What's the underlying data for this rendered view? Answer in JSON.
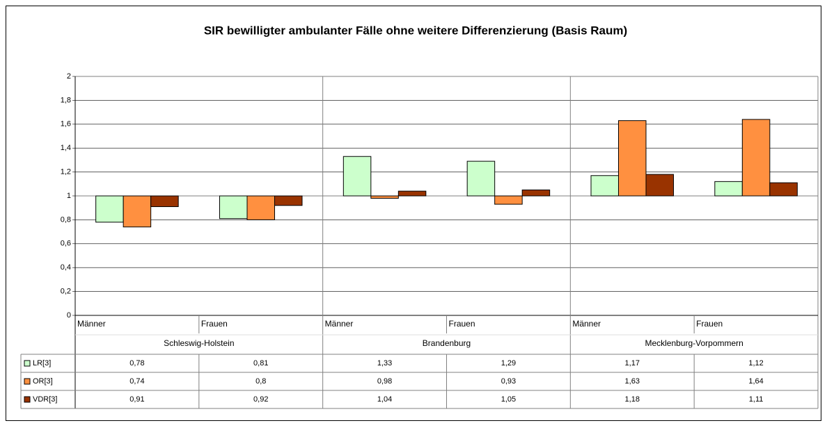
{
  "chart_data": {
    "type": "bar",
    "title": "SIR bewilligter ambulanter Fälle ohne weitere Differenzierung (Basis Raum)",
    "groups": [
      "Schleswig-Holstein",
      "Brandenburg",
      "Mecklenburg-Vorpommern"
    ],
    "categories": [
      "Männer",
      "Frauen",
      "Männer",
      "Frauen",
      "Männer",
      "Frauen"
    ],
    "baseline": 1,
    "series": [
      {
        "name": "LR[3]",
        "color": "#ccffcc",
        "values": [
          0.78,
          0.81,
          1.33,
          1.29,
          1.17,
          1.12
        ],
        "value_labels": [
          "0,78",
          "0,81",
          "1,33",
          "1,29",
          "1,17",
          "1,12"
        ]
      },
      {
        "name": "OR[3]",
        "color": "#ff9040",
        "values": [
          0.74,
          0.8,
          0.98,
          0.93,
          1.63,
          1.64
        ],
        "value_labels": [
          "0,74",
          "0,8",
          "0,98",
          "0,93",
          "1,63",
          "1,64"
        ]
      },
      {
        "name": "VDR[3]",
        "color": "#993300",
        "values": [
          0.91,
          0.92,
          1.04,
          1.05,
          1.18,
          1.11
        ],
        "value_labels": [
          "0,91",
          "0,92",
          "1,04",
          "1,05",
          "1,18",
          "1,11"
        ]
      }
    ],
    "ylim": [
      0,
      2
    ],
    "yticks": [
      0,
      {
        "value": 0.2,
        "label": "0,2"
      },
      {
        "value": 0.4,
        "label": "0,4"
      },
      {
        "value": 0.6,
        "label": "0,6"
      },
      {
        "value": 0.8,
        "label": "0,8"
      },
      1,
      {
        "value": 1.2,
        "label": "1,2"
      },
      {
        "value": 1.4,
        "label": "1,4"
      },
      {
        "value": 1.6,
        "label": "1,6"
      },
      {
        "value": 1.8,
        "label": "1,8"
      },
      2
    ],
    "grid": true
  }
}
